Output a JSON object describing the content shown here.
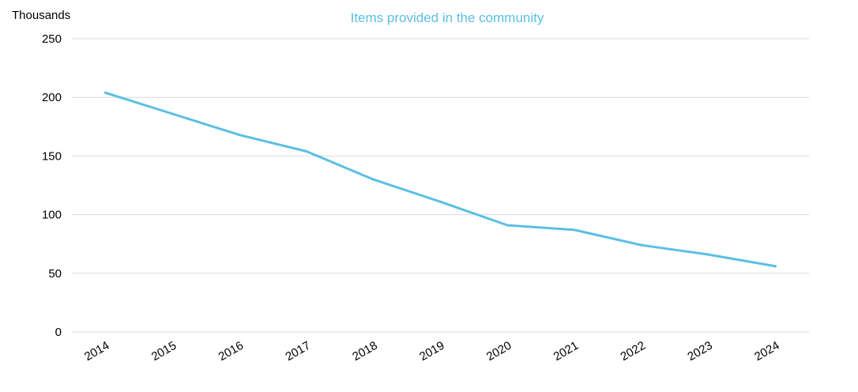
{
  "chart_data": {
    "type": "line",
    "title": "Items provided in the community",
    "ylabel": "Thousands",
    "xlabel": "",
    "categories": [
      "2014",
      "2015",
      "2016",
      "2017",
      "2018",
      "2019",
      "2020",
      "2021",
      "2022",
      "2023",
      "2024"
    ],
    "series": [
      {
        "values": [
          204,
          186,
          168,
          154,
          130,
          111,
          91,
          87,
          74,
          66,
          56
        ]
      }
    ],
    "yticks": [
      "0",
      "50",
      "100",
      "150",
      "200",
      "250"
    ],
    "ylim": [
      0,
      250
    ],
    "grid": true,
    "legend": "none"
  },
  "colors": {
    "line": "#5bbfe4",
    "title": "#5bbfe4",
    "grid": "#d9d9d9"
  }
}
